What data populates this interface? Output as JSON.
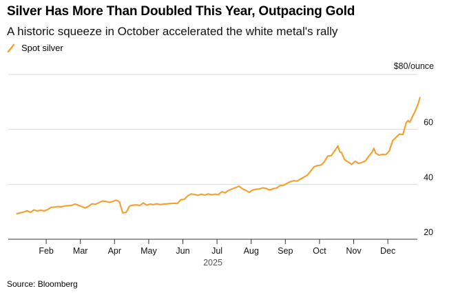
{
  "header": {
    "title": "Silver Has More Than Doubled This Year, Outpacing Gold",
    "subtitle": "A historic squeeze in October accelerated the white metal's rally"
  },
  "legend": {
    "label": "Spot silver"
  },
  "footer": {
    "source": "Source: Bloomberg"
  },
  "colors": {
    "series": "#f5a132",
    "grid": "#d9d9d9",
    "axis": "#333333"
  },
  "chart_data": {
    "type": "line",
    "title": "Silver Has More Than Doubled This Year, Outpacing Gold",
    "subtitle": "A historic squeeze in October accelerated the white metal's rally",
    "xlabel": "2025",
    "ylabel": "$80/ounce",
    "y_unit_label": "$80/ounce",
    "ylim": [
      20,
      80
    ],
    "yticks": [
      20,
      40,
      60,
      80
    ],
    "ytick_labels": [
      "20",
      "40",
      "60",
      "$80/ounce"
    ],
    "y_axis_side": "right",
    "xlim_months": [
      0,
      11.9
    ],
    "xticks": [
      1,
      2,
      3,
      4,
      5,
      6,
      7,
      8,
      9,
      10,
      11
    ],
    "xtick_labels": [
      "Feb",
      "Mar",
      "Apr",
      "May",
      "Jun",
      "Jul",
      "Aug",
      "Sep",
      "Oct",
      "Nov",
      "Dec"
    ],
    "year_label": "2025",
    "grid": true,
    "legend_position": "top-left",
    "series": [
      {
        "name": "Spot silver",
        "points": [
          [
            0.1,
            29.3
          ],
          [
            0.2,
            29.6
          ],
          [
            0.3,
            29.9
          ],
          [
            0.4,
            30.4
          ],
          [
            0.5,
            29.8
          ],
          [
            0.6,
            30.7
          ],
          [
            0.7,
            30.3
          ],
          [
            0.8,
            30.6
          ],
          [
            0.9,
            30.3
          ],
          [
            1.0,
            30.8
          ],
          [
            1.1,
            31.6
          ],
          [
            1.2,
            31.7
          ],
          [
            1.3,
            31.9
          ],
          [
            1.4,
            31.8
          ],
          [
            1.5,
            32.1
          ],
          [
            1.6,
            32.2
          ],
          [
            1.7,
            32.3
          ],
          [
            1.8,
            32.8
          ],
          [
            1.9,
            32.4
          ],
          [
            2.0,
            31.9
          ],
          [
            2.1,
            31.4
          ],
          [
            2.2,
            32.0
          ],
          [
            2.3,
            32.9
          ],
          [
            2.4,
            32.7
          ],
          [
            2.5,
            33.3
          ],
          [
            2.6,
            33.9
          ],
          [
            2.7,
            33.8
          ],
          [
            2.8,
            33.4
          ],
          [
            2.9,
            33.7
          ],
          [
            3.0,
            34.2
          ],
          [
            3.05,
            34.0
          ],
          [
            3.1,
            33.6
          ],
          [
            3.2,
            29.6
          ],
          [
            3.3,
            29.8
          ],
          [
            3.4,
            32.1
          ],
          [
            3.5,
            32.4
          ],
          [
            3.6,
            32.5
          ],
          [
            3.7,
            32.3
          ],
          [
            3.8,
            33.2
          ],
          [
            3.9,
            32.4
          ],
          [
            4.0,
            32.8
          ],
          [
            4.1,
            32.6
          ],
          [
            4.2,
            32.9
          ],
          [
            4.3,
            32.6
          ],
          [
            4.4,
            32.8
          ],
          [
            4.5,
            32.9
          ],
          [
            4.6,
            33.0
          ],
          [
            4.7,
            33.1
          ],
          [
            4.8,
            33.0
          ],
          [
            4.9,
            34.4
          ],
          [
            5.0,
            34.5
          ],
          [
            5.1,
            35.8
          ],
          [
            5.2,
            36.5
          ],
          [
            5.3,
            36.3
          ],
          [
            5.4,
            36.0
          ],
          [
            5.5,
            36.4
          ],
          [
            5.6,
            36.1
          ],
          [
            5.7,
            36.5
          ],
          [
            5.8,
            36.2
          ],
          [
            5.9,
            36.4
          ],
          [
            6.0,
            36.3
          ],
          [
            6.1,
            37.3
          ],
          [
            6.2,
            36.9
          ],
          [
            6.3,
            37.8
          ],
          [
            6.4,
            38.3
          ],
          [
            6.5,
            38.8
          ],
          [
            6.6,
            39.3
          ],
          [
            6.7,
            38.4
          ],
          [
            6.8,
            37.8
          ],
          [
            6.9,
            37.1
          ],
          [
            7.0,
            37.9
          ],
          [
            7.1,
            38.2
          ],
          [
            7.2,
            38.3
          ],
          [
            7.3,
            38.7
          ],
          [
            7.4,
            38.5
          ],
          [
            7.5,
            37.9
          ],
          [
            7.6,
            38.4
          ],
          [
            7.7,
            38.6
          ],
          [
            7.8,
            39.5
          ],
          [
            7.9,
            39.6
          ],
          [
            8.0,
            40.3
          ],
          [
            8.1,
            40.9
          ],
          [
            8.2,
            41.3
          ],
          [
            8.3,
            41.2
          ],
          [
            8.4,
            41.9
          ],
          [
            8.5,
            42.6
          ],
          [
            8.6,
            43.3
          ],
          [
            8.7,
            44.8
          ],
          [
            8.8,
            46.4
          ],
          [
            8.9,
            46.8
          ],
          [
            9.0,
            47.0
          ],
          [
            9.1,
            48.2
          ],
          [
            9.2,
            50.3
          ],
          [
            9.3,
            50.4
          ],
          [
            9.4,
            52.1
          ],
          [
            9.5,
            54.0
          ],
          [
            9.55,
            51.8
          ],
          [
            9.6,
            51.6
          ],
          [
            9.7,
            48.9
          ],
          [
            9.8,
            48.1
          ],
          [
            9.9,
            47.3
          ],
          [
            10.0,
            48.4
          ],
          [
            10.1,
            47.6
          ],
          [
            10.2,
            48.0
          ],
          [
            10.3,
            48.5
          ],
          [
            10.4,
            50.2
          ],
          [
            10.5,
            51.7
          ],
          [
            10.55,
            53.1
          ],
          [
            10.6,
            51.4
          ],
          [
            10.7,
            50.6
          ],
          [
            10.8,
            50.9
          ],
          [
            10.9,
            50.8
          ],
          [
            11.0,
            52.1
          ],
          [
            11.1,
            55.9
          ],
          [
            11.2,
            57.1
          ],
          [
            11.3,
            58.3
          ],
          [
            11.4,
            58.1
          ],
          [
            11.5,
            62.5
          ],
          [
            11.55,
            63.2
          ],
          [
            11.6,
            62.6
          ],
          [
            11.7,
            65.2
          ],
          [
            11.75,
            66.4
          ],
          [
            11.8,
            67.9
          ],
          [
            11.85,
            69.5
          ],
          [
            11.9,
            71.6
          ]
        ]
      }
    ]
  }
}
